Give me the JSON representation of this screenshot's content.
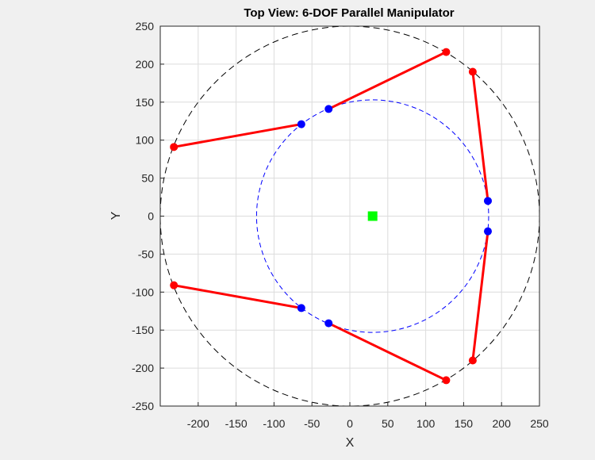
{
  "chart_data": {
    "type": "scatter",
    "title": "Top View: 6-DOF Parallel Manipulator",
    "xlabel": "X",
    "ylabel": "Y",
    "xlim": [
      -250,
      250
    ],
    "ylim": [
      -250,
      250
    ],
    "xticks": [
      -200,
      -150,
      -100,
      -50,
      0,
      50,
      100,
      150,
      200,
      250
    ],
    "yticks": [
      250,
      200,
      150,
      100,
      50,
      0,
      -50,
      -100,
      -150,
      -200,
      -250
    ],
    "grid": true,
    "base_circle": {
      "center": [
        0,
        0
      ],
      "radius": 250,
      "color": "#000000"
    },
    "platform_circle": {
      "center": [
        30,
        0
      ],
      "radius": 153,
      "color": "#0000ff"
    },
    "platform_center": {
      "x": 30,
      "y": 0,
      "color": "#00ff00"
    },
    "base_joints": [
      {
        "x": 127,
        "y": 216
      },
      {
        "x": 162,
        "y": 190
      },
      {
        "x": 162,
        "y": -190
      },
      {
        "x": 127,
        "y": -216
      },
      {
        "x": -232,
        "y": -91
      },
      {
        "x": -232,
        "y": 91
      }
    ],
    "platform_joints": [
      {
        "x": -28,
        "y": 141
      },
      {
        "x": 182,
        "y": 20
      },
      {
        "x": 182,
        "y": -20
      },
      {
        "x": -28,
        "y": -141
      },
      {
        "x": -64,
        "y": -121
      },
      {
        "x": -64,
        "y": 121
      }
    ],
    "legs": [
      {
        "base": 0,
        "platform": 0
      },
      {
        "base": 1,
        "platform": 1
      },
      {
        "base": 2,
        "platform": 2
      },
      {
        "base": 3,
        "platform": 3
      },
      {
        "base": 4,
        "platform": 4
      },
      {
        "base": 5,
        "platform": 5
      }
    ],
    "colors": {
      "leg": "#ff0000",
      "base_joint": "#ff0000",
      "platform_joint": "#0000ff",
      "grid": "#dcdcdc",
      "axes_bg": "#ffffff"
    }
  }
}
